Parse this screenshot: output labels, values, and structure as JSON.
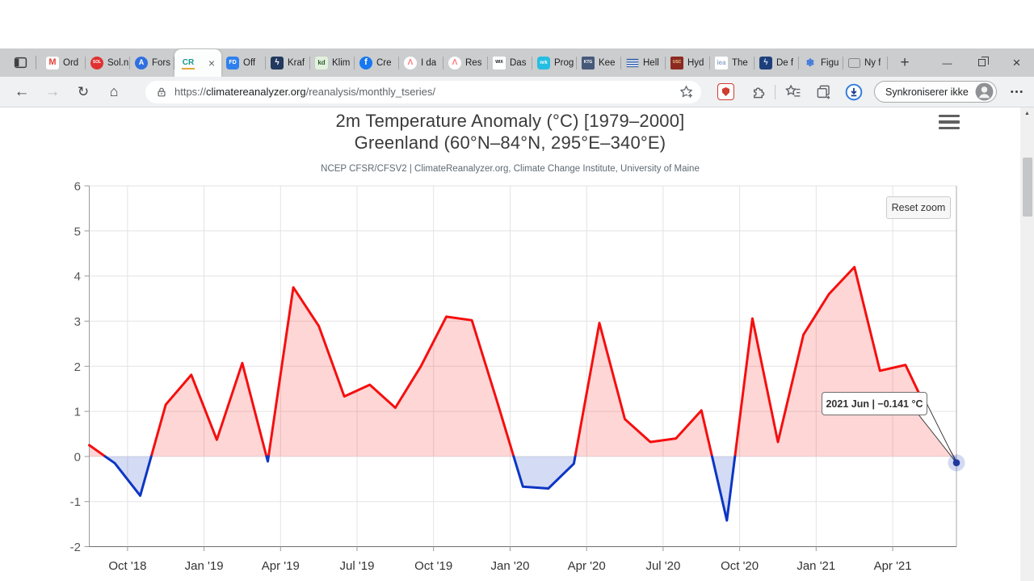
{
  "browser": {
    "icons": {
      "back": "←",
      "forward": "→",
      "refresh": "↻",
      "home": "⌂",
      "new_tab": "+",
      "minimize": "—",
      "close_window": "×",
      "close_tab": "×",
      "scroll_up": "▲"
    },
    "tab_strip": {
      "tabs": [
        {
          "label": "Ord",
          "favicon": {
            "type": "letters",
            "name": "gmail-icon",
            "bg": "#ffffff",
            "fg": "#e2443a",
            "text": "M",
            "size": 11,
            "radius": 3
          }
        },
        {
          "label": "Sol.n",
          "favicon": {
            "type": "letters",
            "name": "sol-icon",
            "bg": "#e03131",
            "fg": "#ffffff",
            "text": "SOL",
            "size": 5,
            "radius": 50
          }
        },
        {
          "label": "Fors",
          "favicon": {
            "type": "letters",
            "name": "forskning-icon",
            "bg": "#2f6fe0",
            "fg": "#ffffff",
            "text": "A",
            "size": 9,
            "radius": 50
          }
        },
        {
          "label": "CR",
          "active": true,
          "favicon": {
            "type": "letters",
            "name": "climatereanalyzer-icon",
            "bg": "transparent",
            "fg": "#18978f",
            "text": "CR",
            "size": 10,
            "radius": 0,
            "underline": "#e3a63c"
          }
        },
        {
          "label": "Off",
          "favicon": {
            "type": "letters",
            "name": "fd-icon",
            "bg": "#2f80ed",
            "fg": "#ffffff",
            "text": "FD",
            "size": 7,
            "radius": 4
          }
        },
        {
          "label": "Kraf",
          "favicon": {
            "type": "letters",
            "name": "kraft-icon",
            "bg": "#23395d",
            "fg": "#ffffff",
            "text": "ϟ",
            "size": 10,
            "radius": 3
          }
        },
        {
          "label": "Klim",
          "favicon": {
            "type": "letters",
            "name": "kd-icon",
            "bg": "#e2f1dd",
            "fg": "#2a5c2b",
            "text": "kd",
            "size": 8,
            "radius": 3
          }
        },
        {
          "label": "Cre",
          "favicon": {
            "type": "letters",
            "name": "facebook-icon",
            "bg": "#1877f2",
            "fg": "#ffffff",
            "text": "f",
            "size": 11,
            "radius": 50
          }
        },
        {
          "label": "I da",
          "favicon": {
            "type": "letters",
            "name": "airbnb-icon",
            "bg": "#ffffff",
            "fg": "#ff7b80",
            "text": "Λ",
            "size": 10,
            "radius": 50
          }
        },
        {
          "label": "Res",
          "favicon": {
            "type": "letters",
            "name": "airbnb-icon",
            "bg": "#ffffff",
            "fg": "#ff7b80",
            "text": "Λ",
            "size": 10,
            "radius": 50
          }
        },
        {
          "label": "Das",
          "favicon": {
            "type": "letters",
            "name": "wix-icon",
            "bg": "#ffffff",
            "fg": "#111111",
            "text": "WIX",
            "size": 5,
            "radius": 2
          }
        },
        {
          "label": "Prog",
          "favicon": {
            "type": "letters",
            "name": "nrk-icon",
            "bg": "#26bde2",
            "fg": "#ffffff",
            "text": "nrk",
            "size": 6,
            "radius": 4
          }
        },
        {
          "label": "Kee",
          "favicon": {
            "type": "letters",
            "name": "ktg-icon",
            "bg": "#47597a",
            "fg": "#ffffff",
            "text": "KTG",
            "size": 5,
            "radius": 2
          }
        },
        {
          "label": "Hell",
          "favicon": {
            "type": "flag-greece",
            "name": "greece-flag-icon"
          }
        },
        {
          "label": "Hyd",
          "favicon": {
            "type": "letters",
            "name": "usc-icon",
            "bg": "#8c2a21",
            "fg": "#e8c38a",
            "text": "USC",
            "size": 5,
            "radius": 2
          }
        },
        {
          "label": "The",
          "favicon": {
            "type": "letters",
            "name": "iea-icon",
            "bg": "#ffffff",
            "fg": "#8fa8cc",
            "text": "iea",
            "size": 8,
            "radius": 2
          }
        },
        {
          "label": "De f",
          "favicon": {
            "type": "letters",
            "name": "de-icon",
            "bg": "#1d3f7a",
            "fg": "#cfe0f4",
            "text": "ϟ",
            "size": 10,
            "radius": 3
          }
        },
        {
          "label": "Figu",
          "favicon": {
            "type": "letters",
            "name": "snowflake-icon",
            "bg": "transparent",
            "fg": "#2f6fe0",
            "text": "❄",
            "size": 13,
            "radius": 0
          }
        },
        {
          "label": "Ny f",
          "favicon": {
            "type": "card",
            "name": "card-icon"
          }
        }
      ]
    },
    "toolbar": {
      "url_scheme": "https://",
      "url_domain": "climatereanalyzer.org",
      "url_path": "/reanalysis/monthly_tseries/",
      "profile_label": "Synkroniserer ikke"
    }
  },
  "page": {
    "title_line1": "2m Temperature Anomaly (°C) [1979–2000]",
    "title_line2": "Greenland (60°N–84°N, 295°E–340°E)",
    "subtitle": "NCEP CFSR/CFSV2 | ClimateReanalyzer.org, Climate Change Institute, University of Maine",
    "reset_zoom_label": "Reset zoom",
    "tooltip_text": "2021 Jun | −0.141 °C"
  },
  "chart_data": {
    "type": "area",
    "title": "2m Temperature Anomaly (°C) [1979–2000] Greenland (60°N–84°N, 295°E–340°E)",
    "subtitle": "NCEP CFSR/CFSV2 | ClimateReanalyzer.org, Climate Change Institute, University of Maine",
    "ylabel": "",
    "xlabel": "",
    "ylim": [
      -2,
      6
    ],
    "grid": true,
    "legend": false,
    "x": [
      "Aug '18",
      "Sep '18",
      "Oct '18",
      "Nov '18",
      "Dec '18",
      "Jan '19",
      "Feb '19",
      "Mar '19",
      "Apr '19",
      "May '19",
      "Jun '19",
      "Jul '19",
      "Aug '19",
      "Sep '19",
      "Oct '19",
      "Nov '19",
      "Dec '19",
      "Jan '20",
      "Feb '20",
      "Mar '20",
      "Apr '20",
      "May '20",
      "Jun '20",
      "Jul '20",
      "Aug '20",
      "Sep '20",
      "Oct '20",
      "Nov '20",
      "Dec '20",
      "Jan '21",
      "Feb '21",
      "Mar '21",
      "Apr '21",
      "May '21",
      "Jun '21"
    ],
    "values": [
      0.25,
      -0.15,
      -0.87,
      1.15,
      1.81,
      0.37,
      2.07,
      -0.11,
      3.75,
      2.89,
      1.33,
      1.59,
      1.08,
      2.0,
      3.1,
      3.02,
      1.2,
      -0.67,
      -0.71,
      -0.16,
      2.96,
      0.83,
      0.32,
      0.4,
      1.02,
      -1.42,
      3.06,
      0.32,
      2.7,
      3.6,
      4.2,
      1.9,
      2.03,
      0.85,
      -0.141
    ],
    "x_ticks": [
      {
        "i": 2,
        "label": "Oct '18"
      },
      {
        "i": 5,
        "label": "Jan '19"
      },
      {
        "i": 8,
        "label": "Apr '19"
      },
      {
        "i": 11,
        "label": "Jul '19"
      },
      {
        "i": 14,
        "label": "Oct '19"
      },
      {
        "i": 17,
        "label": "Jan '20"
      },
      {
        "i": 20,
        "label": "Apr '20"
      },
      {
        "i": 23,
        "label": "Jul '20"
      },
      {
        "i": 26,
        "label": "Oct '20"
      },
      {
        "i": 29,
        "label": "Jan '21"
      },
      {
        "i": 32,
        "label": "Apr '21"
      }
    ],
    "y_ticks": [
      {
        "v": -2,
        "label": "-2"
      },
      {
        "v": -1,
        "label": "-1"
      },
      {
        "v": 0,
        "label": "0"
      },
      {
        "v": 1,
        "label": "1"
      },
      {
        "v": 2,
        "label": "2"
      },
      {
        "v": 3,
        "label": "3"
      },
      {
        "v": 4,
        "label": "4"
      },
      {
        "v": 5,
        "label": "5"
      },
      {
        "v": 6,
        "label": "6"
      }
    ],
    "colors": {
      "line_positive": "#f50f0f",
      "line_negative": "#0d36c4",
      "fill_positive": "rgba(255,0,0,0.16)",
      "fill_negative": "rgba(17,54,196,0.18)",
      "grid": "#e3e3e3",
      "marker": "#20379f",
      "marker_halo": "rgba(50,80,190,0.22)"
    },
    "hover_point": {
      "x": "2021 Jun",
      "value": -0.141
    }
  }
}
